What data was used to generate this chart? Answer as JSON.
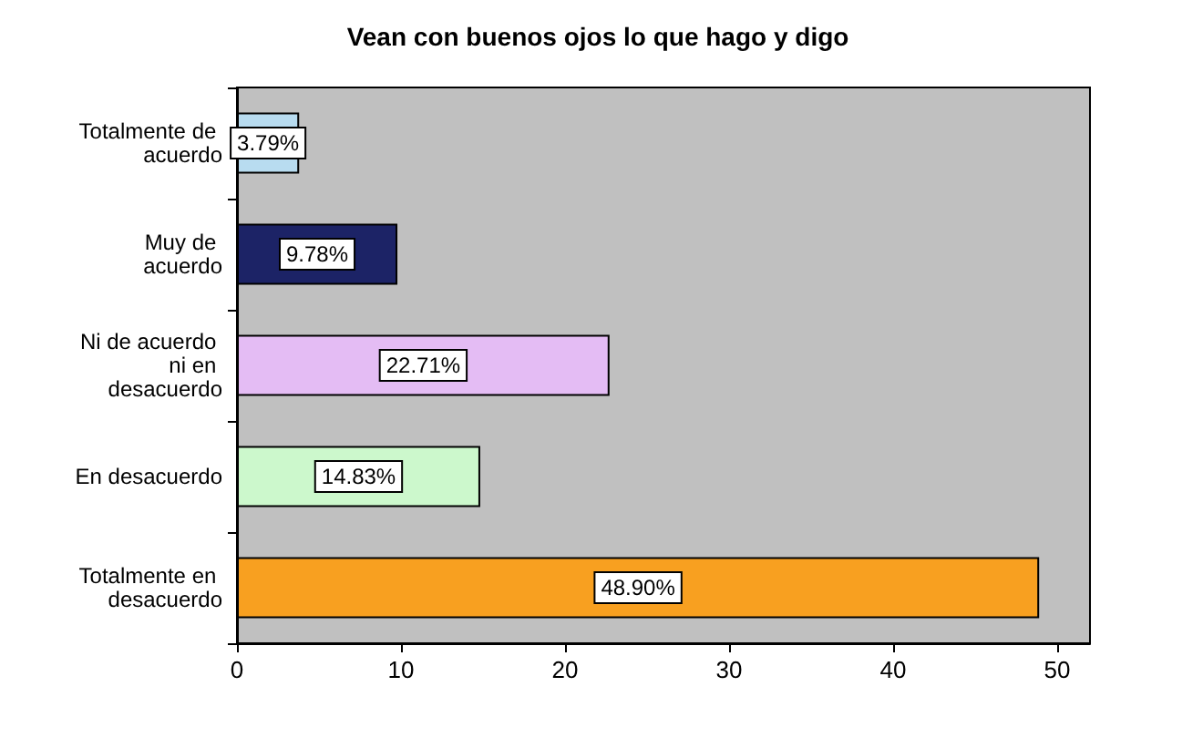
{
  "chart_data": {
    "type": "bar",
    "orientation": "horizontal",
    "title": "Vean con buenos ojos lo que hago y digo",
    "categories": [
      "Totalmente de acuerdo",
      "Muy de acuerdo",
      "Ni de acuerdo ni en desacuerdo",
      "En desacuerdo",
      "Totalmente en desacuerdo"
    ],
    "values": [
      3.79,
      9.78,
      22.71,
      14.83,
      48.9
    ],
    "value_labels": [
      "3.79%",
      "9.78%",
      "22.71%",
      "14.83%",
      "48.90%"
    ],
    "colors": [
      "#b8dcf0",
      "#1c2366",
      "#e4bcf4",
      "#ccf8cc",
      "#f8a020"
    ],
    "xlim": [
      0,
      52
    ],
    "xticks": [
      0,
      10,
      20,
      30,
      40,
      50
    ]
  }
}
